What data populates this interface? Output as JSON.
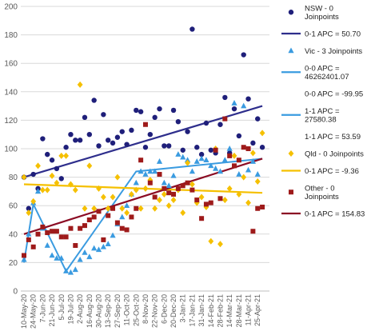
{
  "chart_data": {
    "type": "scatter",
    "title": "",
    "xlabel": "",
    "ylabel": "",
    "ylim": [
      0,
      200
    ],
    "yticks": [
      0,
      20,
      40,
      60,
      80,
      100,
      120,
      140,
      160,
      180,
      200
    ],
    "x_tick_labels": [
      "10-May-20",
      "24-May-20",
      "7-Jun-20",
      "21-Jun-20",
      "5-Jul-20",
      "19-Jul-20",
      "2-Aug-20",
      "16-Aug-20",
      "30-Aug-20",
      "13-Sep-20",
      "27-Sep-20",
      "11-Oct-20",
      "25-Oct-20",
      "8-Nov-20",
      "22-Nov-20",
      "6-Dec-20",
      "20-Dec-20",
      "3-Jan-21",
      "17-Jan-21",
      "31-Jan-21",
      "14-Feb-21",
      "28-Feb-21",
      "14-Mar-21",
      "28-Mar-21",
      "11-Apr-21",
      "25-Apr-21"
    ],
    "x_range": [
      "10-May-20",
      "2-May-21"
    ],
    "grid": "horizontal",
    "legend_position": "right",
    "colors": {
      "nsw": "#1f1f7a",
      "nsw_line": "#2e2e8c",
      "vic": "#3a9be0",
      "vic_line": "#3a9be0",
      "qld": "#f5c000",
      "qld_line": "#f5c000",
      "other": "#9e1a1a",
      "other_line": "#8b0b23"
    },
    "legend": [
      {
        "type": "marker",
        "series": "nsw",
        "shape": "circle",
        "lines": [
          "NSW - 0",
          "Joinpoints"
        ]
      },
      {
        "type": "line",
        "series": "nsw",
        "lines": [
          "0-1 APC = 50.70"
        ]
      },
      {
        "type": "marker",
        "series": "vic",
        "shape": "triangle",
        "lines": [
          "Vic - 3 Joinpoints"
        ]
      },
      {
        "type": "line",
        "series": "vic",
        "lines": [
          "0-0 APC =",
          "46262401.07"
        ]
      },
      {
        "type": "text",
        "series": "vic",
        "lines": [
          "0-0 APC = -99.95"
        ]
      },
      {
        "type": "line",
        "series": "vic",
        "lines": [
          "1-1 APC =",
          "27580.38"
        ]
      },
      {
        "type": "text",
        "series": "vic",
        "lines": [
          "1-1 APC = 53.59"
        ]
      },
      {
        "type": "marker",
        "series": "qld",
        "shape": "diamond",
        "lines": [
          "Qld - 0 Joinpoints"
        ]
      },
      {
        "type": "line",
        "series": "qld",
        "lines": [
          "0-1 APC = -9.36"
        ]
      },
      {
        "type": "marker",
        "series": "other",
        "shape": "square",
        "lines": [
          "Other - 0",
          "Joinpoints"
        ]
      },
      {
        "type": "line",
        "series": "other",
        "lines": [
          "0-1 APC = 154.83"
        ]
      }
    ],
    "series": [
      {
        "key": "nsw",
        "marker": "circle",
        "points": [
          [
            0,
            80
          ],
          [
            1,
            58
          ],
          [
            2,
            82
          ],
          [
            3,
            72
          ],
          [
            4,
            107
          ],
          [
            5,
            96
          ],
          [
            6,
            92
          ],
          [
            7,
            86
          ],
          [
            8,
            79
          ],
          [
            9,
            101
          ],
          [
            10,
            110
          ],
          [
            11,
            106
          ],
          [
            12,
            106
          ],
          [
            13,
            122
          ],
          [
            14,
            110
          ],
          [
            15,
            134
          ],
          [
            16,
            102
          ],
          [
            17,
            124
          ],
          [
            18,
            106
          ],
          [
            19,
            104
          ],
          [
            20,
            108
          ],
          [
            21,
            112
          ],
          [
            22,
            103
          ],
          [
            23,
            113
          ],
          [
            24,
            127
          ],
          [
            25,
            126
          ],
          [
            26,
            101
          ],
          [
            27,
            110
          ],
          [
            28,
            122
          ],
          [
            29,
            128
          ],
          [
            30,
            102
          ],
          [
            31,
            102
          ],
          [
            32,
            127
          ],
          [
            33,
            119
          ],
          [
            34,
            99
          ],
          [
            35,
            112
          ],
          [
            36,
            184
          ],
          [
            37,
            101
          ],
          [
            38,
            96
          ],
          [
            39,
            118
          ],
          [
            40,
            99
          ],
          [
            41,
            97
          ],
          [
            42,
            117
          ],
          [
            43,
            136
          ],
          [
            44,
            97
          ],
          [
            45,
            128
          ],
          [
            46,
            109
          ],
          [
            47,
            166
          ],
          [
            48,
            135
          ],
          [
            49,
            104
          ],
          [
            50,
            121
          ],
          [
            51,
            101
          ]
        ]
      },
      {
        "key": "vic",
        "marker": "triangle",
        "points": [
          [
            0,
            22
          ],
          [
            1,
            40
          ],
          [
            2,
            62
          ],
          [
            3,
            70
          ],
          [
            4,
            44
          ],
          [
            5,
            32
          ],
          [
            6,
            25
          ],
          [
            7,
            23
          ],
          [
            8,
            23
          ],
          [
            9,
            14
          ],
          [
            10,
            13
          ],
          [
            11,
            15
          ],
          [
            12,
            22
          ],
          [
            13,
            27
          ],
          [
            14,
            24
          ],
          [
            15,
            30
          ],
          [
            16,
            29
          ],
          [
            17,
            31
          ],
          [
            18,
            33
          ],
          [
            19,
            39
          ],
          [
            20,
            47
          ],
          [
            21,
            52
          ],
          [
            22,
            60
          ],
          [
            23,
            68
          ],
          [
            24,
            76
          ],
          [
            25,
            84
          ],
          [
            26,
            82
          ],
          [
            27,
            84
          ],
          [
            28,
            84
          ],
          [
            29,
            91
          ],
          [
            30,
            76
          ],
          [
            31,
            74
          ],
          [
            32,
            81
          ],
          [
            33,
            96
          ],
          [
            34,
            94
          ],
          [
            35,
            92
          ],
          [
            36,
            84
          ],
          [
            37,
            91
          ],
          [
            38,
            93
          ],
          [
            39,
            92
          ],
          [
            40,
            88
          ],
          [
            41,
            86
          ],
          [
            42,
            84
          ],
          [
            43,
            92
          ],
          [
            44,
            100
          ],
          [
            45,
            132
          ],
          [
            46,
            82
          ],
          [
            47,
            130
          ],
          [
            48,
            85
          ],
          [
            49,
            91
          ],
          [
            50,
            82
          ]
        ]
      },
      {
        "key": "qld",
        "marker": "diamond",
        "points": [
          [
            0,
            80
          ],
          [
            1,
            55
          ],
          [
            2,
            63
          ],
          [
            3,
            88
          ],
          [
            4,
            71
          ],
          [
            5,
            71
          ],
          [
            6,
            81
          ],
          [
            7,
            76
          ],
          [
            8,
            95
          ],
          [
            9,
            95
          ],
          [
            10,
            75
          ],
          [
            11,
            71
          ],
          [
            12,
            145
          ],
          [
            13,
            58
          ],
          [
            14,
            88
          ],
          [
            15,
            58
          ],
          [
            16,
            72
          ],
          [
            17,
            66
          ],
          [
            18,
            58
          ],
          [
            19,
            66
          ],
          [
            20,
            80
          ],
          [
            21,
            58
          ],
          [
            22,
            55
          ],
          [
            23,
            68
          ],
          [
            24,
            71
          ],
          [
            25,
            58
          ],
          [
            26,
            72
          ],
          [
            27,
            78
          ],
          [
            28,
            58
          ],
          [
            29,
            64
          ],
          [
            30,
            68
          ],
          [
            31,
            60
          ],
          [
            32,
            64
          ],
          [
            33,
            71
          ],
          [
            34,
            55
          ],
          [
            35,
            90
          ],
          [
            36,
            75
          ],
          [
            37,
            62
          ],
          [
            38,
            66
          ],
          [
            39,
            59
          ],
          [
            40,
            35
          ],
          [
            41,
            100
          ],
          [
            42,
            33
          ],
          [
            43,
            64
          ],
          [
            44,
            72
          ],
          [
            45,
            95
          ],
          [
            46,
            68
          ],
          [
            47,
            80
          ],
          [
            48,
            62
          ],
          [
            49,
            97
          ],
          [
            50,
            77
          ],
          [
            51,
            111
          ]
        ]
      },
      {
        "key": "other",
        "marker": "square",
        "points": [
          [
            0,
            25
          ],
          [
            1,
            36
          ],
          [
            2,
            31
          ],
          [
            3,
            40
          ],
          [
            4,
            45
          ],
          [
            5,
            41
          ],
          [
            6,
            42
          ],
          [
            7,
            42
          ],
          [
            8,
            38
          ],
          [
            9,
            38
          ],
          [
            10,
            44
          ],
          [
            11,
            32
          ],
          [
            12,
            44
          ],
          [
            13,
            46
          ],
          [
            14,
            50
          ],
          [
            15,
            52
          ],
          [
            16,
            56
          ],
          [
            17,
            36
          ],
          [
            18,
            53
          ],
          [
            19,
            58
          ],
          [
            20,
            48
          ],
          [
            21,
            44
          ],
          [
            22,
            43
          ],
          [
            23,
            52
          ],
          [
            24,
            58
          ],
          [
            25,
            92
          ],
          [
            26,
            117
          ],
          [
            27,
            76
          ],
          [
            28,
            66
          ],
          [
            29,
            82
          ],
          [
            30,
            72
          ],
          [
            31,
            69
          ],
          [
            32,
            68
          ],
          [
            33,
            72
          ],
          [
            34,
            74
          ],
          [
            35,
            76
          ],
          [
            36,
            71
          ],
          [
            37,
            64
          ],
          [
            38,
            51
          ],
          [
            39,
            61
          ],
          [
            40,
            62
          ],
          [
            41,
            99
          ],
          [
            42,
            65
          ],
          [
            43,
            121
          ],
          [
            44,
            95
          ],
          [
            45,
            88
          ],
          [
            46,
            92
          ],
          [
            47,
            101
          ],
          [
            48,
            100
          ],
          [
            49,
            42
          ],
          [
            50,
            58
          ],
          [
            51,
            59
          ]
        ]
      }
    ],
    "trend_lines": [
      {
        "series": "nsw",
        "points": [
          [
            0,
            80
          ],
          [
            51,
            130
          ]
        ]
      },
      {
        "series": "vic",
        "points": [
          [
            0,
            20
          ],
          [
            2,
            61
          ],
          [
            9,
            14
          ],
          [
            24,
            84
          ],
          [
            51,
            93
          ]
        ]
      },
      {
        "series": "qld",
        "points": [
          [
            0,
            75
          ],
          [
            51,
            69
          ]
        ]
      },
      {
        "series": "other",
        "points": [
          [
            0,
            40
          ],
          [
            51,
            93
          ]
        ]
      }
    ]
  }
}
